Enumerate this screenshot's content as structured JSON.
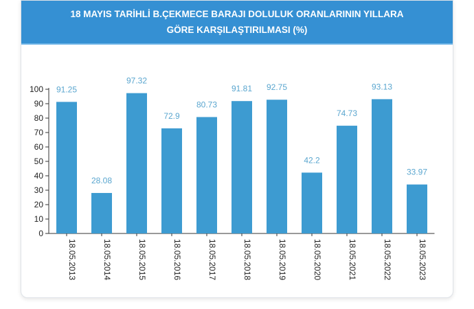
{
  "chart_data": {
    "type": "bar",
    "title": "18 MAYIS TARİHLİ B.ÇEKMECE BARAJI DOLULUK ORANLARININ YILLARA GÖRE KARŞILAŞTIRILMASI (%)",
    "categories": [
      "18.05.2013",
      "18.05.2014",
      "18.05.2015",
      "18.05.2016",
      "18.05.2017",
      "18.05.2018",
      "18.05.2019",
      "18.05.2020",
      "18.05.2021",
      "18.05.2022",
      "18.05.2023"
    ],
    "values": [
      91.25,
      28.08,
      97.32,
      72.9,
      80.73,
      91.81,
      92.75,
      42.2,
      74.73,
      93.13,
      33.97
    ],
    "value_labels": [
      "91.25",
      "28.08",
      "97.32",
      "72.9",
      "80.73",
      "91.81",
      "92.75",
      "42.2",
      "74.73",
      "93.13",
      "33.97"
    ],
    "y_ticks": [
      0,
      10,
      20,
      30,
      40,
      50,
      60,
      70,
      80,
      90,
      100
    ],
    "ylim": [
      0,
      100
    ],
    "grid": false,
    "bar_color": "#3d9bd1",
    "label_color": "#5aa6cf",
    "header_color": "#3590d3"
  }
}
